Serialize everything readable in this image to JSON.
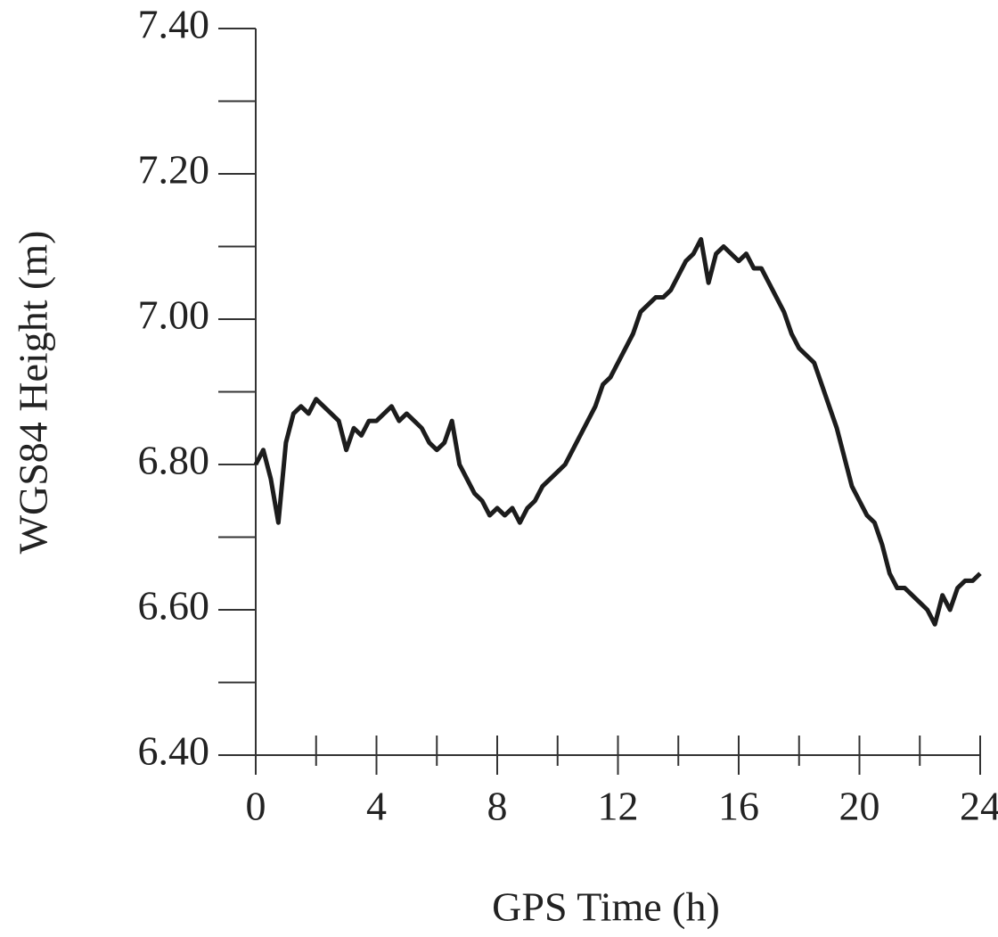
{
  "chart_data": {
    "type": "line",
    "xlabel": "GPS Time (h)",
    "ylabel": "WGS84 Height (m)",
    "xlim": [
      0,
      24
    ],
    "ylim": [
      6.4,
      7.4
    ],
    "xticks": [
      0,
      4,
      8,
      12,
      16,
      20,
      24
    ],
    "yticks": [
      {
        "value": 6.4,
        "label": "6.40"
      },
      {
        "value": 6.6,
        "label": "6.60"
      },
      {
        "value": 6.8,
        "label": "6.80"
      },
      {
        "value": 7.0,
        "label": "7.00"
      },
      {
        "value": 7.2,
        "label": "7.20"
      },
      {
        "value": 7.4,
        "label": "7.40"
      }
    ],
    "minor_ticks": true,
    "grid": false,
    "series": [
      {
        "color": "#1c1c1c",
        "x": [
          0,
          0.25,
          0.5,
          0.75,
          1,
          1.25,
          1.5,
          1.75,
          2,
          2.25,
          2.5,
          2.75,
          3,
          3.25,
          3.5,
          3.75,
          4,
          4.25,
          4.5,
          4.75,
          5,
          5.25,
          5.5,
          5.75,
          6,
          6.25,
          6.5,
          6.75,
          7,
          7.25,
          7.5,
          7.75,
          8,
          8.25,
          8.5,
          8.75,
          9,
          9.25,
          9.5,
          9.75,
          10,
          10.25,
          10.5,
          10.75,
          11,
          11.25,
          11.5,
          11.75,
          12,
          12.25,
          12.5,
          12.75,
          13,
          13.25,
          13.5,
          13.75,
          14,
          14.25,
          14.5,
          14.75,
          15,
          15.25,
          15.5,
          15.75,
          16,
          16.25,
          16.5,
          16.75,
          17,
          17.25,
          17.5,
          17.75,
          18,
          18.25,
          18.5,
          18.75,
          19,
          19.25,
          19.5,
          19.75,
          20,
          20.25,
          20.5,
          20.75,
          21,
          21.25,
          21.5,
          21.75,
          22,
          22.25,
          22.5,
          22.75,
          23,
          23.25,
          23.5,
          23.75,
          24
        ],
        "values": [
          6.8,
          6.82,
          6.78,
          6.72,
          6.83,
          6.87,
          6.88,
          6.87,
          6.89,
          6.88,
          6.87,
          6.86,
          6.82,
          6.85,
          6.84,
          6.86,
          6.86,
          6.87,
          6.88,
          6.86,
          6.87,
          6.86,
          6.85,
          6.83,
          6.82,
          6.83,
          6.86,
          6.8,
          6.78,
          6.76,
          6.75,
          6.73,
          6.74,
          6.73,
          6.74,
          6.72,
          6.74,
          6.75,
          6.77,
          6.78,
          6.79,
          6.8,
          6.82,
          6.84,
          6.86,
          6.88,
          6.91,
          6.92,
          6.94,
          6.96,
          6.98,
          7.01,
          7.02,
          7.03,
          7.03,
          7.04,
          7.06,
          7.08,
          7.09,
          7.11,
          7.05,
          7.09,
          7.1,
          7.09,
          7.08,
          7.09,
          7.07,
          7.07,
          7.05,
          7.03,
          7.01,
          6.98,
          6.96,
          6.95,
          6.94,
          6.91,
          6.88,
          6.85,
          6.81,
          6.77,
          6.75,
          6.73,
          6.72,
          6.69,
          6.65,
          6.63,
          6.63,
          6.62,
          6.61,
          6.6,
          6.58,
          6.62,
          6.6,
          6.63,
          6.64,
          6.64,
          6.65
        ]
      }
    ]
  }
}
